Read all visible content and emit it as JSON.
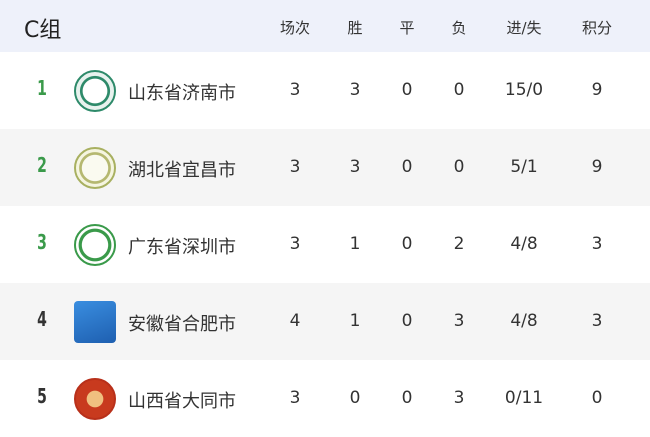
{
  "group": "C组",
  "columns": [
    "场次",
    "胜",
    "平",
    "负",
    "进/失",
    "积分"
  ],
  "rows": [
    {
      "rank": "1",
      "team": "山东省济南市",
      "played": "3",
      "won": "3",
      "drawn": "0",
      "lost": "0",
      "goals": "15/0",
      "points": "9",
      "logo": "jinan-emblem"
    },
    {
      "rank": "2",
      "team": "湖北省宜昌市",
      "played": "3",
      "won": "3",
      "drawn": "0",
      "lost": "0",
      "goals": "5/1",
      "points": "9",
      "logo": "yichang-emblem"
    },
    {
      "rank": "3",
      "team": "广东省深圳市",
      "played": "3",
      "won": "1",
      "drawn": "0",
      "lost": "2",
      "goals": "4/8",
      "points": "3",
      "logo": "shenzhen-emblem"
    },
    {
      "rank": "4",
      "team": "安徽省合肥市",
      "played": "4",
      "won": "1",
      "drawn": "0",
      "lost": "3",
      "goals": "4/8",
      "points": "3",
      "logo": "hefei-emblem"
    },
    {
      "rank": "5",
      "team": "山西省大同市",
      "played": "3",
      "won": "0",
      "drawn": "0",
      "lost": "3",
      "goals": "0/11",
      "points": "0",
      "logo": "datong-emblem"
    }
  ],
  "colors": {
    "top_rank": "#3a9a4a",
    "header_bg": "#eef1fa",
    "alt_row": "#f5f5f5"
  }
}
